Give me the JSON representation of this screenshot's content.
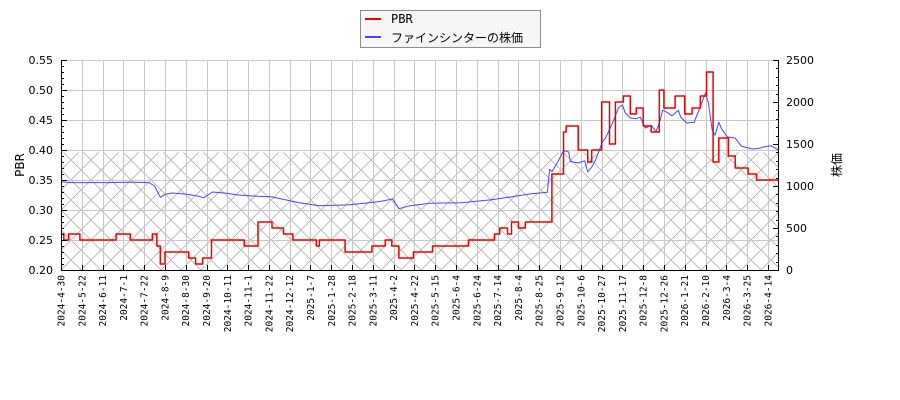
{
  "chart_data": {
    "type": "line",
    "title": "",
    "xlabel": "",
    "ylabel": "PBR",
    "ylabel_right": "株価",
    "ylim": [
      0.2,
      0.55
    ],
    "ylim_right": [
      0,
      2500
    ],
    "yticks": [
      "0.20",
      "0.25",
      "0.30",
      "0.35",
      "0.40",
      "0.45",
      "0.50",
      "0.55"
    ],
    "yticks_right": [
      "0",
      "500",
      "1000",
      "1500",
      "2000",
      "2500"
    ],
    "x_ticks": [
      "2024-4-30",
      "2024-5-22",
      "2024-6-11",
      "2024-7-1",
      "2024-7-22",
      "2024-8-9",
      "2024-8-30",
      "2024-9-20",
      "2024-10-11",
      "2024-11-1",
      "2024-11-22",
      "2024-12-12",
      "2025-1-7",
      "2025-1-28",
      "2025-2-18",
      "2025-3-11",
      "2025-4-2",
      "2025-4-22",
      "2025-5-15",
      "2025-6-4",
      "2025-6-24",
      "2025-7-14",
      "2025-8-4",
      "2025-8-25",
      "2025-9-12",
      "2025-10-6",
      "2025-10-27",
      "2025-11-17",
      "2025-12-8",
      "2025-12-26",
      "2026-1-21",
      "2026-2-10",
      "2026-3-4",
      "2026-3-25",
      "2026-4-14"
    ],
    "grid": true,
    "legend_position": "top-center",
    "shaded_region": {
      "axis": "right",
      "from": 0,
      "to": 1400,
      "pattern": "crosshatch"
    },
    "series": [
      {
        "name": "PBR",
        "axis": "left",
        "style": "step",
        "color": "#ee0000",
        "points": [
          [
            "2024-04-30",
            0.26
          ],
          [
            "2024-05-03",
            0.25
          ],
          [
            "2024-05-08",
            0.26
          ],
          [
            "2024-05-20",
            0.25
          ],
          [
            "2024-06-24",
            0.26
          ],
          [
            "2024-07-08",
            0.25
          ],
          [
            "2024-07-29",
            0.26
          ],
          [
            "2024-08-02",
            0.24
          ],
          [
            "2024-08-05",
            0.21
          ],
          [
            "2024-08-09",
            0.23
          ],
          [
            "2024-09-02",
            0.22
          ],
          [
            "2024-09-09",
            0.21
          ],
          [
            "2024-09-16",
            0.22
          ],
          [
            "2024-09-25",
            0.25
          ],
          [
            "2024-10-28",
            0.24
          ],
          [
            "2024-11-11",
            0.28
          ],
          [
            "2024-11-25",
            0.27
          ],
          [
            "2024-12-06",
            0.26
          ],
          [
            "2024-12-16",
            0.25
          ],
          [
            "2025-01-13",
            0.24
          ],
          [
            "2025-01-16",
            0.25
          ],
          [
            "2025-02-11",
            0.23
          ],
          [
            "2025-03-10",
            0.24
          ],
          [
            "2025-03-24",
            0.25
          ],
          [
            "2025-03-31",
            0.24
          ],
          [
            "2025-04-07",
            0.22
          ],
          [
            "2025-04-21",
            0.23
          ],
          [
            "2025-05-12",
            0.24
          ],
          [
            "2025-06-16",
            0.25
          ],
          [
            "2025-07-11",
            0.26
          ],
          [
            "2025-07-16",
            0.27
          ],
          [
            "2025-07-24",
            0.26
          ],
          [
            "2025-07-28",
            0.28
          ],
          [
            "2025-08-04",
            0.27
          ],
          [
            "2025-08-11",
            0.28
          ],
          [
            "2025-09-05",
            0.36
          ],
          [
            "2025-09-16",
            0.43
          ],
          [
            "2025-09-19",
            0.44
          ],
          [
            "2025-10-03",
            0.4
          ],
          [
            "2025-10-13",
            0.38
          ],
          [
            "2025-10-17",
            0.4
          ],
          [
            "2025-10-27",
            0.48
          ],
          [
            "2025-11-04",
            0.41
          ],
          [
            "2025-11-10",
            0.48
          ],
          [
            "2025-11-18",
            0.49
          ],
          [
            "2025-11-25",
            0.46
          ],
          [
            "2025-12-01",
            0.47
          ],
          [
            "2025-12-08",
            0.44
          ],
          [
            "2025-12-15",
            0.43
          ],
          [
            "2025-12-22",
            0.5
          ],
          [
            "2025-12-26",
            0.47
          ],
          [
            "2026-01-09",
            0.49
          ],
          [
            "2026-01-21",
            0.46
          ],
          [
            "2026-01-28",
            0.47
          ],
          [
            "2026-02-05",
            0.49
          ],
          [
            "2026-02-11",
            0.53
          ],
          [
            "2026-02-18",
            0.38
          ],
          [
            "2026-02-24",
            0.42
          ],
          [
            "2026-03-06",
            0.39
          ],
          [
            "2026-03-13",
            0.37
          ],
          [
            "2026-03-26",
            0.36
          ],
          [
            "2026-04-03",
            0.35
          ],
          [
            "2026-04-24",
            0.35
          ]
        ]
      },
      {
        "name": "ファインシンターの株価",
        "axis": "right",
        "style": "line",
        "color": "#4646ff",
        "points": [
          [
            "2024-04-30",
            1050
          ],
          [
            "2024-05-10",
            1040
          ],
          [
            "2024-05-30",
            1040
          ],
          [
            "2024-06-18",
            1040
          ],
          [
            "2024-07-08",
            1045
          ],
          [
            "2024-07-26",
            1040
          ],
          [
            "2024-07-31",
            1000
          ],
          [
            "2024-08-05",
            865
          ],
          [
            "2024-08-09",
            900
          ],
          [
            "2024-08-16",
            917
          ],
          [
            "2024-08-29",
            905
          ],
          [
            "2024-09-11",
            881
          ],
          [
            "2024-09-17",
            860
          ],
          [
            "2024-09-26",
            929
          ],
          [
            "2024-10-09",
            915
          ],
          [
            "2024-10-22",
            893
          ],
          [
            "2024-11-08",
            880
          ],
          [
            "2024-11-25",
            870
          ],
          [
            "2024-12-06",
            840
          ],
          [
            "2024-12-24",
            800
          ],
          [
            "2025-01-16",
            765
          ],
          [
            "2025-01-31",
            770
          ],
          [
            "2025-02-14",
            775
          ],
          [
            "2025-03-03",
            795
          ],
          [
            "2025-03-18",
            815
          ],
          [
            "2025-04-01",
            845
          ],
          [
            "2025-04-07",
            730
          ],
          [
            "2025-04-18",
            765
          ],
          [
            "2025-05-09",
            795
          ],
          [
            "2025-06-09",
            800
          ],
          [
            "2025-07-07",
            835
          ],
          [
            "2025-07-28",
            870
          ],
          [
            "2025-08-15",
            905
          ],
          [
            "2025-09-01",
            925
          ],
          [
            "2025-09-03",
            1200
          ],
          [
            "2025-09-05",
            1170
          ],
          [
            "2025-09-08",
            1240
          ],
          [
            "2025-09-10",
            1285
          ],
          [
            "2025-09-15",
            1400
          ],
          [
            "2025-09-18",
            1420
          ],
          [
            "2025-09-22",
            1405
          ],
          [
            "2025-09-24",
            1290
          ],
          [
            "2025-10-03",
            1275
          ],
          [
            "2025-10-10",
            1300
          ],
          [
            "2025-10-13",
            1170
          ],
          [
            "2025-10-17",
            1225
          ],
          [
            "2025-10-21",
            1310
          ],
          [
            "2025-10-24",
            1405
          ],
          [
            "2025-10-28",
            1530
          ],
          [
            "2025-10-31",
            1570
          ],
          [
            "2025-11-07",
            1750
          ],
          [
            "2025-11-13",
            1930
          ],
          [
            "2025-11-17",
            1965
          ],
          [
            "2025-11-20",
            1870
          ],
          [
            "2025-11-25",
            1810
          ],
          [
            "2025-12-01",
            1800
          ],
          [
            "2025-12-05",
            1820
          ],
          [
            "2025-12-10",
            1690
          ],
          [
            "2025-12-15",
            1725
          ],
          [
            "2025-12-19",
            1645
          ],
          [
            "2025-12-22",
            1750
          ],
          [
            "2025-12-25",
            1905
          ],
          [
            "2025-12-31",
            1870
          ],
          [
            "2026-01-05",
            1835
          ],
          [
            "2026-01-13",
            1900
          ],
          [
            "2026-01-16",
            1820
          ],
          [
            "2026-01-23",
            1750
          ],
          [
            "2026-01-30",
            1760
          ],
          [
            "2026-02-05",
            1940
          ],
          [
            "2026-02-10",
            2110
          ],
          [
            "2026-02-13",
            1990
          ],
          [
            "2026-02-17",
            1670
          ],
          [
            "2026-02-20",
            1605
          ],
          [
            "2026-02-24",
            1760
          ],
          [
            "2026-02-27",
            1680
          ],
          [
            "2026-03-05",
            1585
          ],
          [
            "2026-03-13",
            1570
          ],
          [
            "2026-03-19",
            1475
          ],
          [
            "2026-03-30",
            1440
          ],
          [
            "2026-04-06",
            1450
          ],
          [
            "2026-04-10",
            1465
          ],
          [
            "2026-04-17",
            1480
          ],
          [
            "2026-04-24",
            1430
          ]
        ]
      }
    ]
  }
}
